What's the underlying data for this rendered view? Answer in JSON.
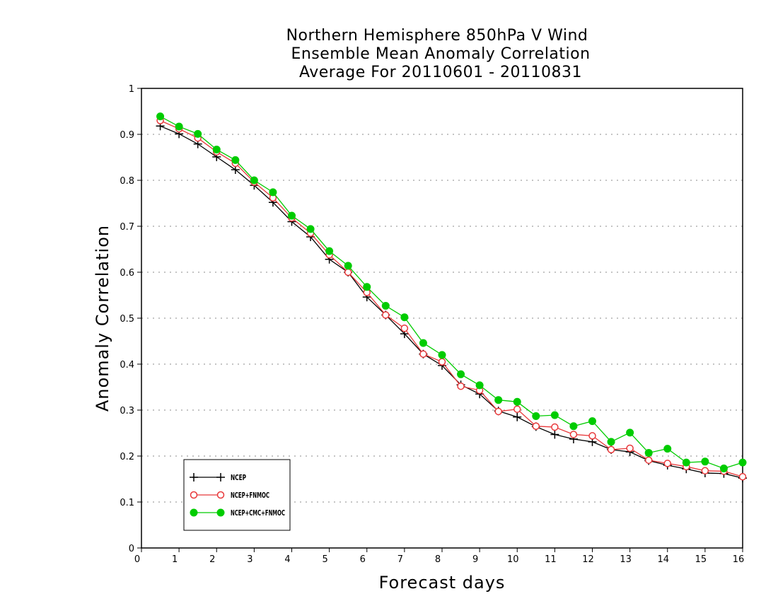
{
  "chart_data": {
    "type": "line",
    "title": [
      "Northern Hemisphere 850hPa V Wind",
      "Ensemble Mean Anomaly Correlation",
      "Average For 20110601 - 20110831"
    ],
    "xlabel": "Forecast days",
    "ylabel": "Anomaly Correlation",
    "xlim": [
      0,
      16
    ],
    "ylim": [
      0,
      1
    ],
    "xticks": [
      "0",
      "1",
      "2",
      "3",
      "4",
      "5",
      "6",
      "7",
      "8",
      "9",
      "10",
      "11",
      "12",
      "13",
      "14",
      "15",
      "16"
    ],
    "yticks": [
      "0",
      "0.1",
      "0.2",
      "0.3",
      "0.4",
      "0.5",
      "0.6",
      "0.7",
      "0.8",
      "0.9",
      "1"
    ],
    "grid": "horizontal-dotted",
    "legend_position": "bottom-left",
    "x": [
      0.5,
      1,
      1.5,
      2,
      2.5,
      3,
      3.5,
      4,
      4.5,
      5,
      5.5,
      6,
      6.5,
      7,
      7.5,
      8,
      8.5,
      9,
      9.5,
      10,
      10.5,
      11,
      11.5,
      12,
      12.5,
      13,
      13.5,
      14,
      14.5,
      15,
      15.5,
      16
    ],
    "series": [
      {
        "name": "NCEP",
        "color": "#000000",
        "marker": "plus",
        "values": [
          0.918,
          0.901,
          0.879,
          0.851,
          0.823,
          0.789,
          0.752,
          0.71,
          0.677,
          0.628,
          0.6,
          0.546,
          0.507,
          0.466,
          0.422,
          0.397,
          0.355,
          0.335,
          0.298,
          0.285,
          0.264,
          0.247,
          0.237,
          0.231,
          0.214,
          0.209,
          0.19,
          0.18,
          0.172,
          0.163,
          0.162,
          0.152
        ]
      },
      {
        "name": "NCEP+FNMOC",
        "color": "#e8383a",
        "marker": "open-circle",
        "values": [
          0.93,
          0.912,
          0.892,
          0.862,
          0.837,
          0.796,
          0.762,
          0.718,
          0.685,
          0.638,
          0.6,
          0.556,
          0.507,
          0.478,
          0.422,
          0.405,
          0.352,
          0.343,
          0.297,
          0.302,
          0.265,
          0.263,
          0.247,
          0.244,
          0.214,
          0.217,
          0.191,
          0.184,
          0.177,
          0.168,
          0.167,
          0.155
        ]
      },
      {
        "name": "NCEP+CMC+FNMOC",
        "color": "#00cc00",
        "marker": "filled-circle",
        "values": [
          0.939,
          0.917,
          0.901,
          0.867,
          0.844,
          0.8,
          0.774,
          0.723,
          0.694,
          0.646,
          0.614,
          0.568,
          0.527,
          0.502,
          0.446,
          0.42,
          0.378,
          0.354,
          0.322,
          0.318,
          0.287,
          0.289,
          0.265,
          0.276,
          0.231,
          0.251,
          0.207,
          0.216,
          0.186,
          0.188,
          0.173,
          0.186
        ]
      }
    ]
  }
}
